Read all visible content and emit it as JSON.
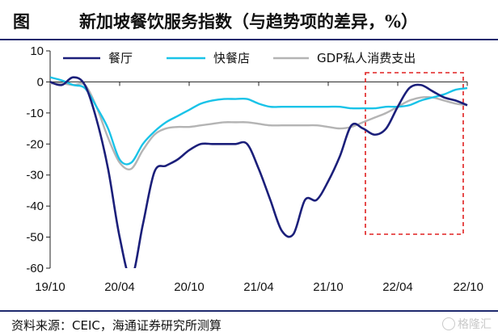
{
  "header": {
    "label": "图",
    "title": "新加坡餐饮服务指数（与趋势项的差异，%）"
  },
  "footer": {
    "source": "资料来源：CEIC，海通证券研究所测算",
    "watermark": "格隆汇"
  },
  "colors": {
    "series_dark": "#1b1f7a",
    "series_cyan": "#19c3e8",
    "series_gray": "#b4b4b4",
    "highlight_box": "#e02020",
    "frame": "#1f2a6e"
  },
  "chart_data": {
    "type": "line",
    "title": "新加坡餐饮服务指数（与趋势项的差异，%）",
    "xlabel": "",
    "ylabel": "",
    "xlim": [
      "2019-10",
      "2022-10"
    ],
    "ylim": [
      -60,
      10
    ],
    "yticks": [
      10,
      0,
      -10,
      -20,
      -30,
      -40,
      -50,
      -60
    ],
    "xticks": [
      "19/10",
      "20/04",
      "20/10",
      "21/04",
      "21/10",
      "22/04",
      "22/10"
    ],
    "grid": false,
    "legend": "top",
    "x": [
      "2019-10",
      "2019-11",
      "2019-12",
      "2020-01",
      "2020-02",
      "2020-03",
      "2020-04",
      "2020-05",
      "2020-06",
      "2020-07",
      "2020-08",
      "2020-09",
      "2020-10",
      "2020-11",
      "2020-12",
      "2021-01",
      "2021-02",
      "2021-03",
      "2021-04",
      "2021-05",
      "2021-06",
      "2021-07",
      "2021-08",
      "2021-09",
      "2021-10",
      "2021-11",
      "2021-12",
      "2022-01",
      "2022-02",
      "2022-03",
      "2022-04",
      "2022-05",
      "2022-06",
      "2022-07",
      "2022-08",
      "2022-09",
      "2022-10"
    ],
    "series": [
      {
        "name": "餐厅",
        "color": "#1b1f7a",
        "values": [
          0,
          -1,
          1.5,
          -1,
          -12,
          -28,
          -50,
          -63,
          -46,
          -29,
          -27,
          -25,
          -22,
          -20,
          -20,
          -20,
          -20,
          -20,
          -28,
          -38,
          -48,
          -49,
          -38,
          -38,
          -32,
          -24,
          -14,
          -15,
          -17,
          -15,
          -8,
          -2,
          -1,
          -3,
          -5,
          -6,
          -7.5
        ]
      },
      {
        "name": "快餐店",
        "color": "#19c3e8",
        "values": [
          1.5,
          0.5,
          -1,
          -2,
          -8,
          -15,
          -25,
          -26,
          -20,
          -16,
          -13,
          -11,
          -9,
          -7,
          -6,
          -5.5,
          -5.5,
          -5.5,
          -7,
          -8,
          -8,
          -8,
          -8,
          -8,
          -8,
          -8,
          -8.5,
          -8.5,
          -8.5,
          -8,
          -8,
          -7.5,
          -6,
          -5,
          -4,
          -2.5,
          -2
        ]
      },
      {
        "name": "GDP私人消费支出",
        "color": "#b4b4b4",
        "values": [
          -0.5,
          -0.5,
          -1,
          -1,
          -8,
          -18,
          -26,
          -28,
          -22,
          -17,
          -15,
          -14.5,
          -14.5,
          -14,
          -13.5,
          -13,
          -13,
          -13,
          -13.5,
          -14,
          -14,
          -14,
          -14,
          -14,
          -14.5,
          -15,
          -14.5,
          -13,
          -11.5,
          -10,
          -8,
          -6,
          -5,
          -5,
          -6,
          -7,
          -7.5
        ]
      }
    ]
  }
}
